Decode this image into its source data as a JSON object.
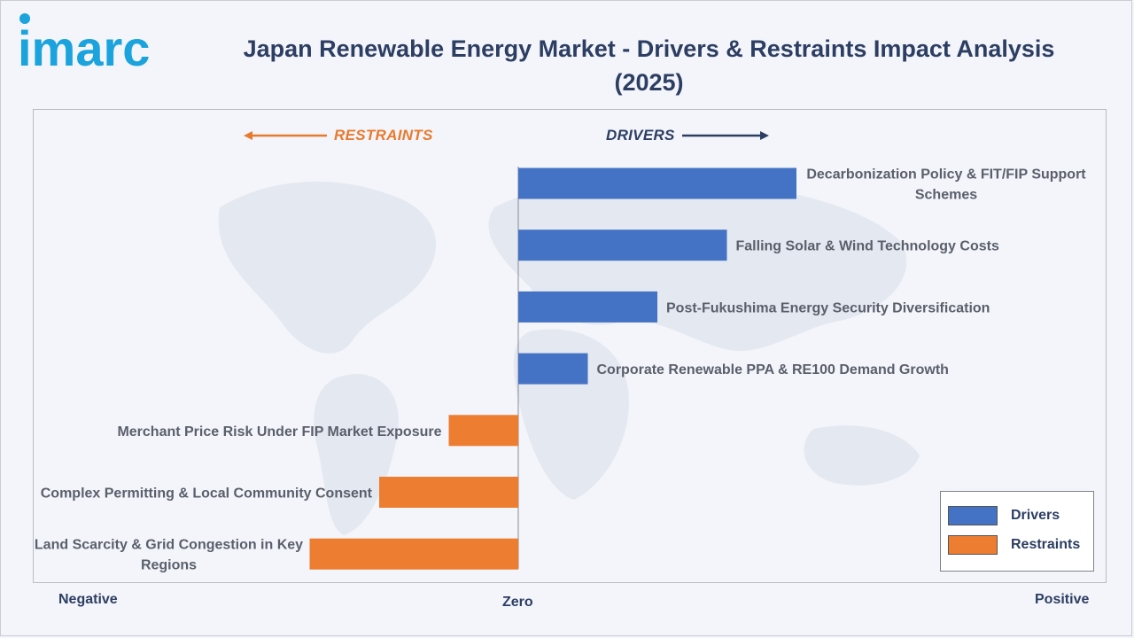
{
  "header": {
    "logo_text": "imarc",
    "title": "Japan Renewable Energy Market - Drivers & Restraints Impact Analysis (2025)"
  },
  "direction": {
    "restraints": "RESTRAINTS",
    "drivers": "DRIVERS"
  },
  "axis": {
    "negative": "Negative",
    "zero": "Zero",
    "positive": "Positive"
  },
  "legend": {
    "drivers": "Drivers",
    "restraints": "Restraints"
  },
  "colors": {
    "drivers": "#4472c4",
    "restraints": "#ed7d31",
    "title": "#2d3e63",
    "logo": "#1ba3dd"
  },
  "chart_data": {
    "type": "bar",
    "orientation": "horizontal",
    "title": "Japan Renewable Energy Market - Drivers & Restraints Impact Analysis (2025)",
    "x_axis_labels": [
      "Negative",
      "Zero",
      "Positive"
    ],
    "categories": [
      "Decarbonization Policy & FIT/FIP Support Schemes",
      "Falling Solar & Wind Technology Costs",
      "Post-Fukushima Energy Security Diversification",
      "Corporate Renewable PPA & RE100 Demand Growth",
      "Merchant Price Risk Under FIP Market Exposure",
      "Complex Permitting & Local Community Consent",
      "Land Scarcity & Grid Congestion in Key Regions"
    ],
    "label_lines": [
      [
        "Decarbonization Policy & FIT/FIP Support",
        "Schemes"
      ],
      [
        "Falling Solar & Wind Technology Costs"
      ],
      [
        "Post-Fukushima Energy Security Diversification"
      ],
      [
        "Corporate Renewable PPA & RE100 Demand Growth"
      ],
      [
        "Merchant Price Risk Under FIP Market Exposure"
      ],
      [
        "Complex Permitting & Local Community Consent"
      ],
      [
        "Land Scarcity & Grid Congestion in Key",
        "Regions"
      ]
    ],
    "series_type": [
      "Drivers",
      "Drivers",
      "Drivers",
      "Drivers",
      "Restraints",
      "Restraints",
      "Restraints"
    ],
    "values": [
      4.0,
      3.0,
      2.0,
      1.0,
      -1.0,
      -2.0,
      -3.0
    ],
    "xlim": [
      -7,
      7
    ],
    "grid": false,
    "legend_position": "bottom-right"
  }
}
